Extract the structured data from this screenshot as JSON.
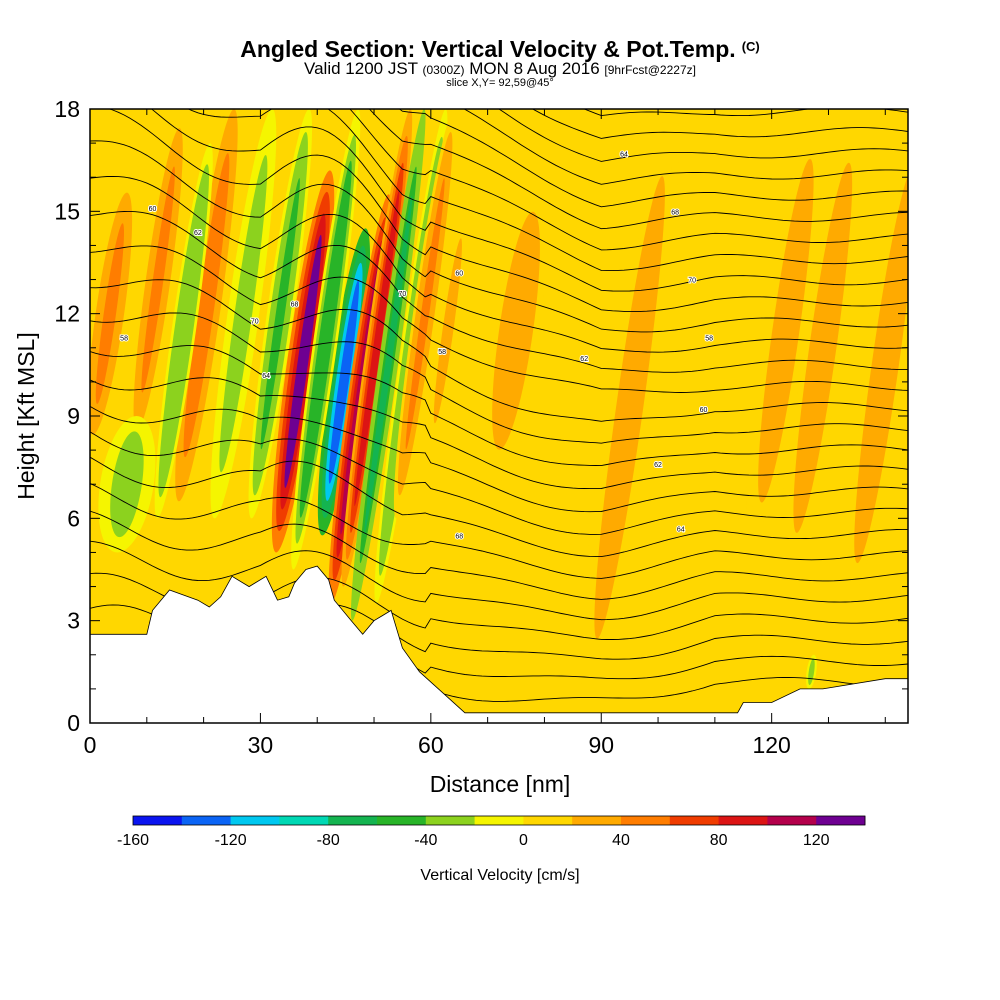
{
  "header": {
    "title": "Angled Section: Vertical Velocity & Pot.Temp.",
    "title_tag": "(C)",
    "valid_prefix": "Valid 1200 JST",
    "valid_zulu": "(0300Z)",
    "valid_date": "MON 8 Aug 2016",
    "forecast": "[9hrFcst@2227z]",
    "slice": "slice X,Y= 92,59@45°"
  },
  "chart_data": {
    "type": "heatmap",
    "xlabel": "Distance [nm]",
    "ylabel": "Height [Kft MSL]",
    "xlim": [
      0,
      144
    ],
    "ylim": [
      0,
      18
    ],
    "x_ticks": [
      0,
      30,
      60,
      90,
      120
    ],
    "y_ticks": [
      0,
      3,
      6,
      9,
      12,
      15,
      18
    ],
    "colorbar": {
      "label": "Vertical Velocity [cm/s]",
      "ticks": [
        -160,
        -120,
        -80,
        -40,
        0,
        40,
        80,
        120
      ],
      "bins": [
        -160,
        -140,
        -120,
        -100,
        -80,
        -60,
        -40,
        -20,
        0,
        20,
        40,
        60,
        80,
        100,
        120,
        140
      ],
      "colors": [
        "#0a14f0",
        "#0a64f5",
        "#00c8f0",
        "#00d8b4",
        "#14b450",
        "#28b428",
        "#8cd21e",
        "#f5f500",
        "#ffd700",
        "#ffaa00",
        "#ff7d00",
        "#f03c00",
        "#dc1414",
        "#b4004b",
        "#6e0091"
      ]
    },
    "background_value_cms": 5,
    "terrain_profile": [
      [
        0,
        2.6
      ],
      [
        10,
        2.6
      ],
      [
        11,
        3.3
      ],
      [
        14,
        3.9
      ],
      [
        19,
        3.6
      ],
      [
        21,
        3.4
      ],
      [
        23,
        3.7
      ],
      [
        25,
        4.3
      ],
      [
        28,
        4.0
      ],
      [
        31,
        4.3
      ],
      [
        33,
        3.6
      ],
      [
        35,
        3.7
      ],
      [
        36,
        4.1
      ],
      [
        38,
        4.5
      ],
      [
        40,
        4.6
      ],
      [
        42,
        4.2
      ],
      [
        43,
        3.6
      ],
      [
        46,
        3.0
      ],
      [
        48,
        2.6
      ],
      [
        50,
        3.0
      ],
      [
        53,
        3.3
      ],
      [
        55,
        2.2
      ],
      [
        58,
        1.5
      ],
      [
        62,
        0.9
      ],
      [
        66,
        0.3
      ],
      [
        69,
        0.3
      ],
      [
        114,
        0.3
      ],
      [
        115,
        0.6
      ],
      [
        120,
        0.6
      ],
      [
        125,
        1.0
      ],
      [
        129,
        1.0
      ],
      [
        140,
        1.3
      ],
      [
        144,
        1.3
      ]
    ],
    "velocity_features": [
      {
        "x": 37.5,
        "ylow": 5.0,
        "yhigh": 16.2,
        "width": 1.3,
        "value": 125
      },
      {
        "x": 44.7,
        "ylow": 5.5,
        "yhigh": 14.5,
        "width": 1.2,
        "value": -135
      },
      {
        "x": 47.5,
        "ylow": 3.5,
        "yhigh": 15.5,
        "width": 1.0,
        "value": 105
      },
      {
        "x": 41.5,
        "ylow": 4.5,
        "yhigh": 18.0,
        "width": 1.0,
        "value": -60
      },
      {
        "x": 50.5,
        "ylow": 4.0,
        "yhigh": 18.0,
        "width": 0.9,
        "value": 90
      },
      {
        "x": 52.5,
        "ylow": 3.0,
        "yhigh": 18.0,
        "width": 0.8,
        "value": -70
      },
      {
        "x": 33.5,
        "ylow": 6.0,
        "yhigh": 18.0,
        "width": 1.1,
        "value": -45
      },
      {
        "x": 27.0,
        "ylow": 6.0,
        "yhigh": 18.0,
        "width": 1.3,
        "value": -35
      },
      {
        "x": 20.5,
        "ylow": 6.5,
        "yhigh": 18.0,
        "width": 1.2,
        "value": 55
      },
      {
        "x": 16.5,
        "ylow": 6.0,
        "yhigh": 17.0,
        "width": 1.0,
        "value": -40
      },
      {
        "x": 12.0,
        "ylow": 8.0,
        "yhigh": 18.0,
        "width": 1.3,
        "value": 45
      },
      {
        "x": 6.5,
        "ylow": 5.0,
        "yhigh": 9.0,
        "width": 2.2,
        "value": -35
      },
      {
        "x": 3.5,
        "ylow": 8.0,
        "yhigh": 16.0,
        "width": 1.5,
        "value": 40
      },
      {
        "x": 56.5,
        "ylow": 3.5,
        "yhigh": 18.0,
        "width": 0.9,
        "value": -40
      },
      {
        "x": 59.0,
        "ylow": 6.0,
        "yhigh": 18.0,
        "width": 1.0,
        "value": 40
      },
      {
        "x": 63.0,
        "ylow": 8.0,
        "yhigh": 15.0,
        "width": 0.8,
        "value": 30
      },
      {
        "x": 75.0,
        "ylow": 7.0,
        "yhigh": 16.0,
        "width": 2.5,
        "value": 30
      },
      {
        "x": 95.0,
        "ylow": 0.5,
        "yhigh": 18.0,
        "width": 2.0,
        "value": 25
      },
      {
        "x": 122.5,
        "ylow": 5.0,
        "yhigh": 18.0,
        "width": 2.0,
        "value": 25
      },
      {
        "x": 129.0,
        "ylow": 4.0,
        "yhigh": 18.0,
        "width": 2.0,
        "value": 25
      },
      {
        "x": 140.0,
        "ylow": 3.0,
        "yhigh": 18.0,
        "width": 2.0,
        "value": 30
      },
      {
        "x": 127.0,
        "ylow": 1.0,
        "yhigh": 2.0,
        "width": 0.4,
        "value": -30
      }
    ],
    "isentrope_labels": [
      "58",
      "60",
      "62",
      "64",
      "68",
      "70"
    ]
  }
}
